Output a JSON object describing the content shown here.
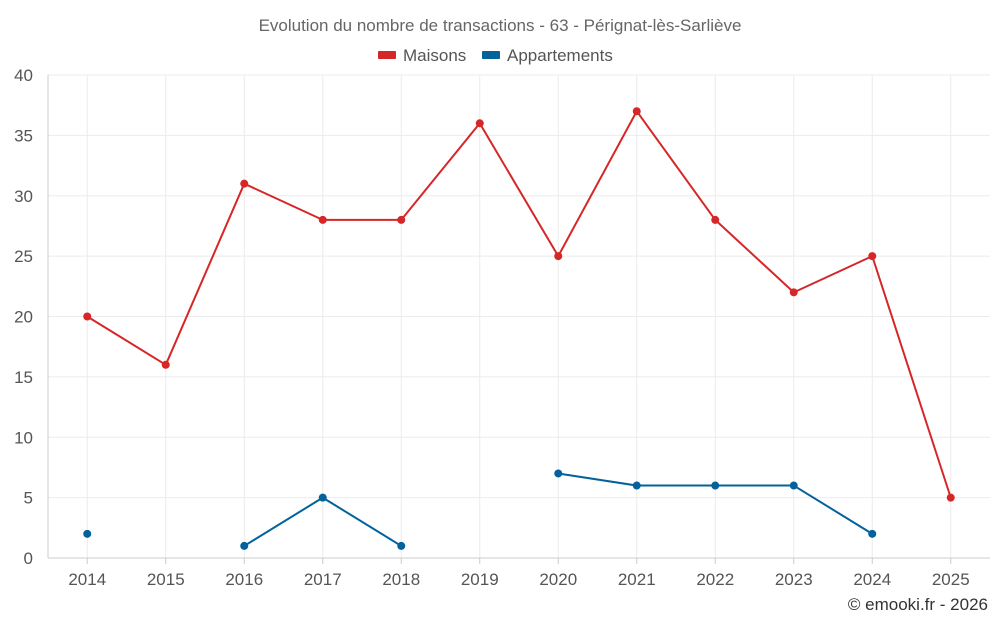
{
  "chart_data": {
    "type": "line",
    "title": "Evolution du nombre de transactions - 63 - Pérignat-lès-Sarliève",
    "categories": [
      "2014",
      "2015",
      "2016",
      "2017",
      "2018",
      "2019",
      "2020",
      "2021",
      "2022",
      "2023",
      "2024",
      "2025"
    ],
    "series": [
      {
        "name": "Maisons",
        "color": "#d62728",
        "values": [
          20,
          16,
          31,
          28,
          28,
          36,
          25,
          37,
          28,
          22,
          25,
          5
        ]
      },
      {
        "name": "Appartements",
        "color": "#03629b",
        "values": [
          2,
          null,
          1,
          5,
          1,
          null,
          7,
          6,
          6,
          6,
          2,
          null
        ]
      }
    ],
    "ylim": [
      0,
      40
    ],
    "yticks": [
      0,
      5,
      10,
      15,
      20,
      25,
      30,
      35,
      40
    ],
    "xlabel": "",
    "ylabel": "",
    "grid": true,
    "legend_position": "top-center"
  },
  "credit": "© emooki.fr - 2026"
}
